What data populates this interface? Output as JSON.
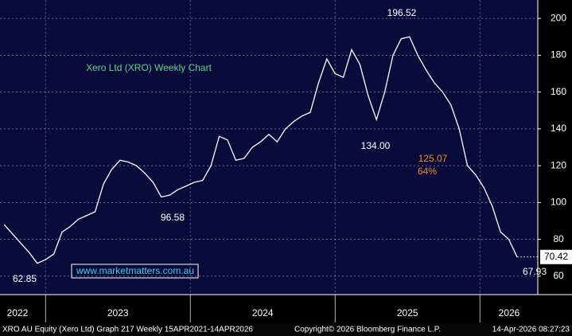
{
  "chart_data": {
    "type": "line",
    "title": "Xero Ltd (XRO) Weekly Chart",
    "values": [
      88,
      83,
      78,
      73,
      67,
      69,
      72,
      84,
      87,
      91,
      93,
      95,
      110,
      118,
      123,
      122,
      120,
      116,
      111,
      103,
      104,
      107,
      109,
      111,
      112,
      120,
      136,
      134,
      123,
      124,
      130,
      133,
      137,
      133,
      140,
      144,
      147,
      149,
      165,
      178,
      170,
      168,
      183,
      175,
      158,
      145,
      160,
      180,
      189,
      190,
      180,
      172,
      165,
      160,
      153,
      140,
      120,
      115,
      108,
      98,
      84,
      80,
      70.42
    ],
    "color": "#ffffff",
    "xlim": [
      -0.5,
      64.5
    ],
    "xticks": [
      {
        "value": -12.5,
        "label": "2022"
      },
      {
        "value": 5,
        "label": "2023"
      },
      {
        "value": 22.5,
        "label": "2024"
      },
      {
        "value": 40,
        "label": "2025"
      },
      {
        "value": 57.5,
        "label": "2026"
      }
    ],
    "ylim": [
      50,
      210
    ],
    "yticks": [
      60,
      80,
      100,
      120,
      140,
      160,
      180,
      200
    ],
    "grid": true,
    "annotations": [
      "196.52",
      "134.00",
      "96.58",
      "62.85",
      "67.93",
      "125.07",
      "64%"
    ],
    "website": "www.marketmatters.com.au",
    "footer": [
      "XRO AU Equity (Xero Ltd) Graph 217 Weekly 15APR2021-14APR2026",
      "Copyright© 2026 Bloomberg Finance L.P.",
      "14-Apr-2026 08:27:23"
    ]
  }
}
